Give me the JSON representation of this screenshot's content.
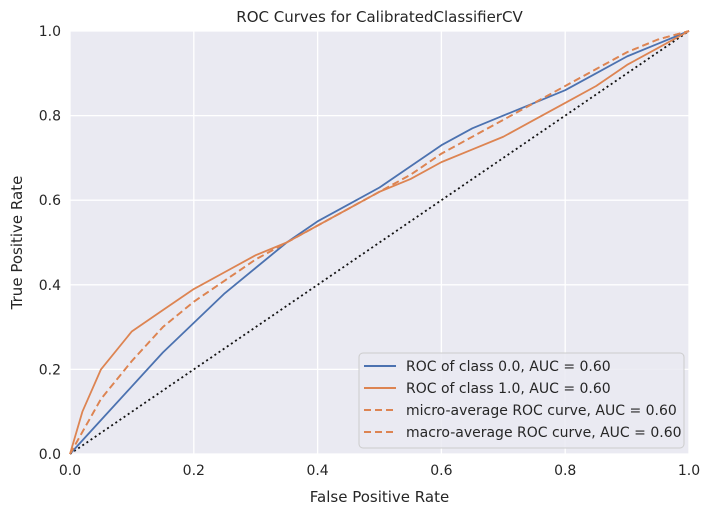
{
  "chart_data": {
    "type": "line",
    "title": "ROC Curves for CalibratedClassifierCV",
    "xlabel": "False Positive Rate",
    "ylabel": "True Positive Rate",
    "xlim": [
      0.0,
      1.0
    ],
    "ylim": [
      0.0,
      1.0
    ],
    "x_ticks": [
      0.0,
      0.2,
      0.4,
      0.6,
      0.8,
      1.0
    ],
    "y_ticks": [
      0.0,
      0.2,
      0.4,
      0.6,
      0.8,
      1.0
    ],
    "x_tick_labels": [
      "0.0",
      "0.2",
      "0.4",
      "0.6",
      "0.8",
      "1.0"
    ],
    "y_tick_labels": [
      "0.0",
      "0.2",
      "0.4",
      "0.6",
      "0.8",
      "1.0"
    ],
    "grid": true,
    "legend_position": "bottom-right",
    "series": [
      {
        "name": "ROC of class 0.0, AUC = 0.60",
        "color": "#4c72b0",
        "dash": "solid",
        "x": [
          0.0,
          0.05,
          0.1,
          0.15,
          0.2,
          0.25,
          0.3,
          0.35,
          0.4,
          0.45,
          0.5,
          0.55,
          0.6,
          0.65,
          0.7,
          0.75,
          0.8,
          0.85,
          0.9,
          0.95,
          1.0
        ],
        "y": [
          0.0,
          0.08,
          0.16,
          0.24,
          0.31,
          0.38,
          0.44,
          0.5,
          0.55,
          0.59,
          0.63,
          0.68,
          0.73,
          0.77,
          0.8,
          0.83,
          0.86,
          0.9,
          0.94,
          0.97,
          1.0
        ]
      },
      {
        "name": "ROC of class 1.0, AUC = 0.60",
        "color": "#dd8452",
        "dash": "solid",
        "x": [
          0.0,
          0.02,
          0.05,
          0.1,
          0.15,
          0.2,
          0.25,
          0.3,
          0.35,
          0.4,
          0.45,
          0.5,
          0.55,
          0.6,
          0.65,
          0.7,
          0.75,
          0.8,
          0.85,
          0.9,
          0.95,
          1.0
        ],
        "y": [
          0.0,
          0.1,
          0.2,
          0.29,
          0.34,
          0.39,
          0.43,
          0.47,
          0.5,
          0.54,
          0.58,
          0.62,
          0.65,
          0.69,
          0.72,
          0.75,
          0.79,
          0.83,
          0.87,
          0.92,
          0.96,
          1.0
        ]
      },
      {
        "name": "micro-average ROC curve, AUC = 0.60",
        "color": "#dd8452",
        "dash": "dashed",
        "x": [
          0.0,
          0.05,
          0.1,
          0.15,
          0.2,
          0.25,
          0.3,
          0.35,
          0.4,
          0.45,
          0.5,
          0.55,
          0.6,
          0.65,
          0.7,
          0.75,
          0.8,
          0.85,
          0.9,
          0.95,
          1.0
        ],
        "y": [
          0.0,
          0.13,
          0.22,
          0.3,
          0.36,
          0.41,
          0.46,
          0.5,
          0.54,
          0.58,
          0.62,
          0.66,
          0.71,
          0.75,
          0.79,
          0.83,
          0.87,
          0.91,
          0.95,
          0.98,
          1.0
        ]
      },
      {
        "name": "macro-average ROC curve, AUC = 0.60",
        "color": "#dd8452",
        "dash": "dashed",
        "x": [
          0.0,
          0.05,
          0.1,
          0.15,
          0.2,
          0.25,
          0.3,
          0.35,
          0.4,
          0.45,
          0.5,
          0.55,
          0.6,
          0.65,
          0.7,
          0.75,
          0.8,
          0.85,
          0.9,
          0.95,
          1.0
        ],
        "y": [
          0.0,
          0.13,
          0.22,
          0.3,
          0.36,
          0.41,
          0.46,
          0.5,
          0.54,
          0.58,
          0.62,
          0.66,
          0.71,
          0.75,
          0.79,
          0.83,
          0.87,
          0.91,
          0.95,
          0.98,
          1.0
        ]
      }
    ],
    "reference_line": {
      "name": "chance",
      "color": "#111111",
      "dash": "dotted",
      "x": [
        0.0,
        1.0
      ],
      "y": [
        0.0,
        1.0
      ]
    }
  }
}
